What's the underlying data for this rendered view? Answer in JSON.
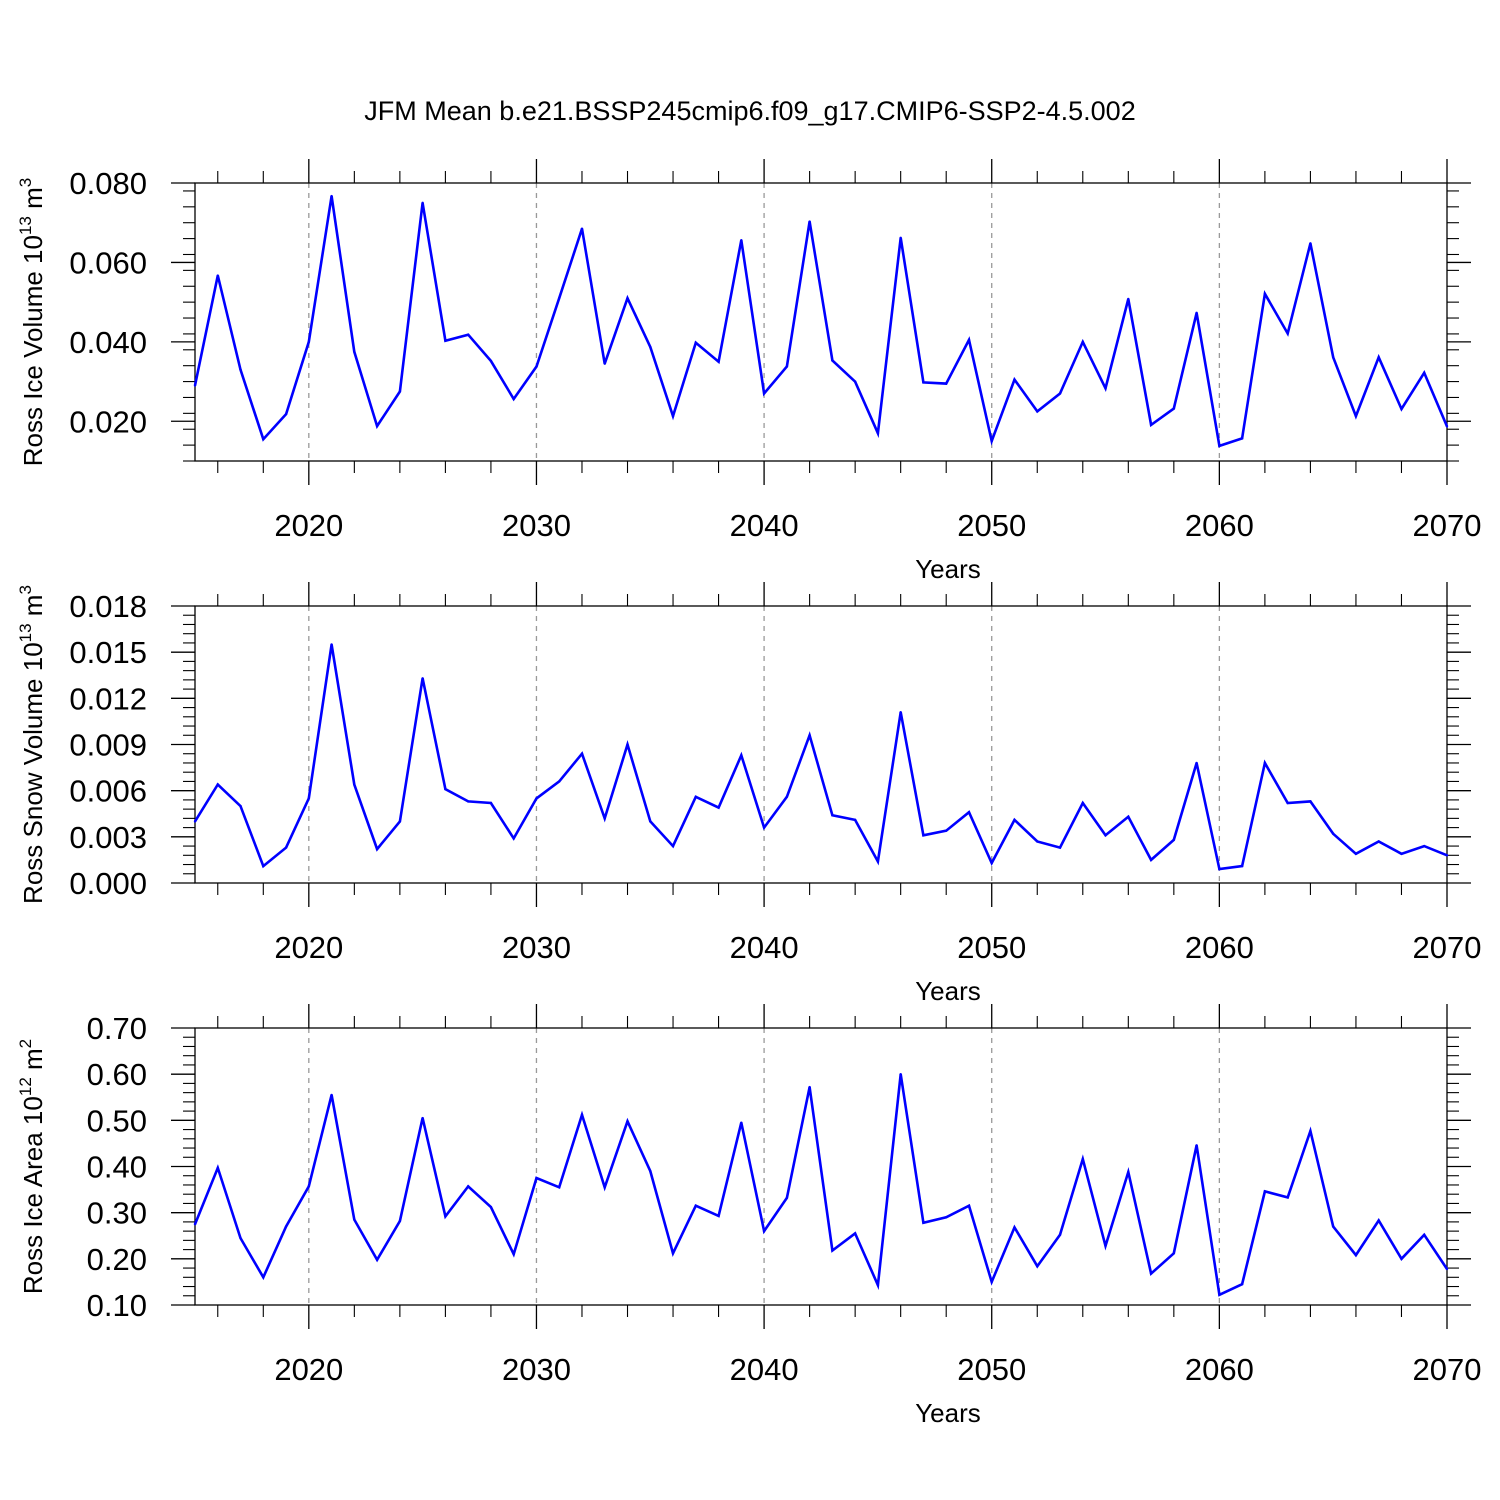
{
  "title": "JFM Mean b.e21.BSSP245cmip6.f09_g17.CMIP6-SSP2-4.5.002",
  "chart_data": [
    {
      "type": "line",
      "xlabel": "Years",
      "ylabel_main": "Ross Ice Volume 10",
      "ylabel_exp": "13",
      "ylabel_unit": " m",
      "ylabel_unit_exp": "3",
      "xlim": [
        2015,
        2070
      ],
      "ylim": [
        0.01,
        0.08
      ],
      "yticks": [
        0.02,
        0.04,
        0.06,
        0.08
      ],
      "ytick_labels": [
        "0.020",
        "0.040",
        "0.060",
        "0.080"
      ],
      "xticks": [
        2020,
        2030,
        2040,
        2050,
        2060,
        2070
      ],
      "xtick_labels": [
        "2020",
        "2030",
        "2040",
        "2050",
        "2060",
        "2070"
      ],
      "series": [
        {
          "name": "Ross Ice Volume",
          "color": "#0000ff",
          "x": [
            2015,
            2016,
            2017,
            2018,
            2019,
            2020,
            2021,
            2022,
            2023,
            2024,
            2025,
            2026,
            2027,
            2028,
            2029,
            2030,
            2031,
            2032,
            2033,
            2034,
            2035,
            2036,
            2037,
            2038,
            2039,
            2040,
            2041,
            2042,
            2043,
            2044,
            2045,
            2046,
            2047,
            2048,
            2049,
            2050,
            2051,
            2052,
            2053,
            2054,
            2055,
            2056,
            2057,
            2058,
            2059,
            2060,
            2061,
            2062,
            2063,
            2064,
            2065,
            2066,
            2067,
            2068,
            2069,
            2070
          ],
          "values": [
            0.029,
            0.0567,
            0.033,
            0.0155,
            0.0218,
            0.04,
            0.0767,
            0.0375,
            0.0188,
            0.0275,
            0.075,
            0.0403,
            0.0418,
            0.0352,
            0.0256,
            0.0338,
            0.051,
            0.0685,
            0.0345,
            0.051,
            0.0387,
            0.0213,
            0.0398,
            0.035,
            0.0656,
            0.027,
            0.0338,
            0.0703,
            0.0353,
            0.03,
            0.017,
            0.0662,
            0.0298,
            0.0295,
            0.0405,
            0.015,
            0.0305,
            0.0225,
            0.027,
            0.04,
            0.0283,
            0.0508,
            0.0191,
            0.0232,
            0.0473,
            0.0138,
            0.0157,
            0.0521,
            0.0421,
            0.0648,
            0.0361,
            0.0213,
            0.0361,
            0.0231,
            0.0322,
            0.0187
          ]
        }
      ]
    },
    {
      "type": "line",
      "xlabel": "Years",
      "ylabel_main": "Ross Snow Volume 10",
      "ylabel_exp": "13",
      "ylabel_unit": " m",
      "ylabel_unit_exp": "3",
      "xlim": [
        2015,
        2070
      ],
      "ylim": [
        0.0,
        0.018
      ],
      "yticks": [
        0.0,
        0.003,
        0.006,
        0.009,
        0.012,
        0.015,
        0.018
      ],
      "ytick_labels": [
        "0.000",
        "0.003",
        "0.006",
        "0.009",
        "0.012",
        "0.015",
        "0.018"
      ],
      "xticks": [
        2020,
        2030,
        2040,
        2050,
        2060,
        2070
      ],
      "xtick_labels": [
        "2020",
        "2030",
        "2040",
        "2050",
        "2060",
        "2070"
      ],
      "series": [
        {
          "name": "Ross Snow Volume",
          "color": "#0000ff",
          "x": [
            2015,
            2016,
            2017,
            2018,
            2019,
            2020,
            2021,
            2022,
            2023,
            2024,
            2025,
            2026,
            2027,
            2028,
            2029,
            2030,
            2031,
            2032,
            2033,
            2034,
            2035,
            2036,
            2037,
            2038,
            2039,
            2040,
            2041,
            2042,
            2043,
            2044,
            2045,
            2046,
            2047,
            2048,
            2049,
            2050,
            2051,
            2052,
            2053,
            2054,
            2055,
            2056,
            2057,
            2058,
            2059,
            2060,
            2061,
            2062,
            2063,
            2064,
            2065,
            2066,
            2067,
            2068,
            2069,
            2070
          ],
          "values": [
            0.004,
            0.0064,
            0.005,
            0.0011,
            0.0023,
            0.0055,
            0.0155,
            0.0064,
            0.0022,
            0.004,
            0.0133,
            0.0061,
            0.0053,
            0.0052,
            0.0029,
            0.0055,
            0.0066,
            0.0084,
            0.0042,
            0.009,
            0.004,
            0.0024,
            0.0056,
            0.0049,
            0.0083,
            0.0036,
            0.0056,
            0.0096,
            0.0044,
            0.0041,
            0.0014,
            0.0111,
            0.0031,
            0.0034,
            0.0046,
            0.0013,
            0.0041,
            0.0027,
            0.0023,
            0.0052,
            0.0031,
            0.0043,
            0.0015,
            0.0028,
            0.0078,
            0.0009,
            0.0011,
            0.0078,
            0.0052,
            0.0053,
            0.0032,
            0.0019,
            0.0027,
            0.0019,
            0.0024,
            0.0018
          ]
        }
      ]
    },
    {
      "type": "line",
      "xlabel": "Years",
      "ylabel_main": "Ross Ice Area 10",
      "ylabel_exp": "12",
      "ylabel_unit": " m",
      "ylabel_unit_exp": "2",
      "xlim": [
        2015,
        2070
      ],
      "ylim": [
        0.1,
        0.7
      ],
      "yticks": [
        0.1,
        0.2,
        0.3,
        0.4,
        0.5,
        0.6,
        0.7
      ],
      "ytick_labels": [
        "0.10",
        "0.20",
        "0.30",
        "0.40",
        "0.50",
        "0.60",
        "0.70"
      ],
      "xticks": [
        2020,
        2030,
        2040,
        2050,
        2060,
        2070
      ],
      "xtick_labels": [
        "2020",
        "2030",
        "2040",
        "2050",
        "2060",
        "2070"
      ],
      "series": [
        {
          "name": "Ross Ice Area",
          "color": "#0000ff",
          "x": [
            2015,
            2016,
            2017,
            2018,
            2019,
            2020,
            2021,
            2022,
            2023,
            2024,
            2025,
            2026,
            2027,
            2028,
            2029,
            2030,
            2031,
            2032,
            2033,
            2034,
            2035,
            2036,
            2037,
            2038,
            2039,
            2040,
            2041,
            2042,
            2043,
            2044,
            2045,
            2046,
            2047,
            2048,
            2049,
            2050,
            2051,
            2052,
            2053,
            2054,
            2055,
            2056,
            2057,
            2058,
            2059,
            2060,
            2061,
            2062,
            2063,
            2064,
            2065,
            2066,
            2067,
            2068,
            2069,
            2070
          ],
          "values": [
            0.275,
            0.397,
            0.245,
            0.16,
            0.27,
            0.357,
            0.555,
            0.285,
            0.198,
            0.282,
            0.505,
            0.292,
            0.357,
            0.312,
            0.21,
            0.375,
            0.355,
            0.512,
            0.355,
            0.498,
            0.39,
            0.212,
            0.315,
            0.293,
            0.495,
            0.26,
            0.332,
            0.572,
            0.218,
            0.255,
            0.143,
            0.6,
            0.278,
            0.29,
            0.315,
            0.15,
            0.268,
            0.184,
            0.252,
            0.416,
            0.228,
            0.388,
            0.168,
            0.212,
            0.446,
            0.122,
            0.145,
            0.346,
            0.333,
            0.477,
            0.27,
            0.208,
            0.283,
            0.2,
            0.252,
            0.178
          ]
        }
      ]
    }
  ]
}
